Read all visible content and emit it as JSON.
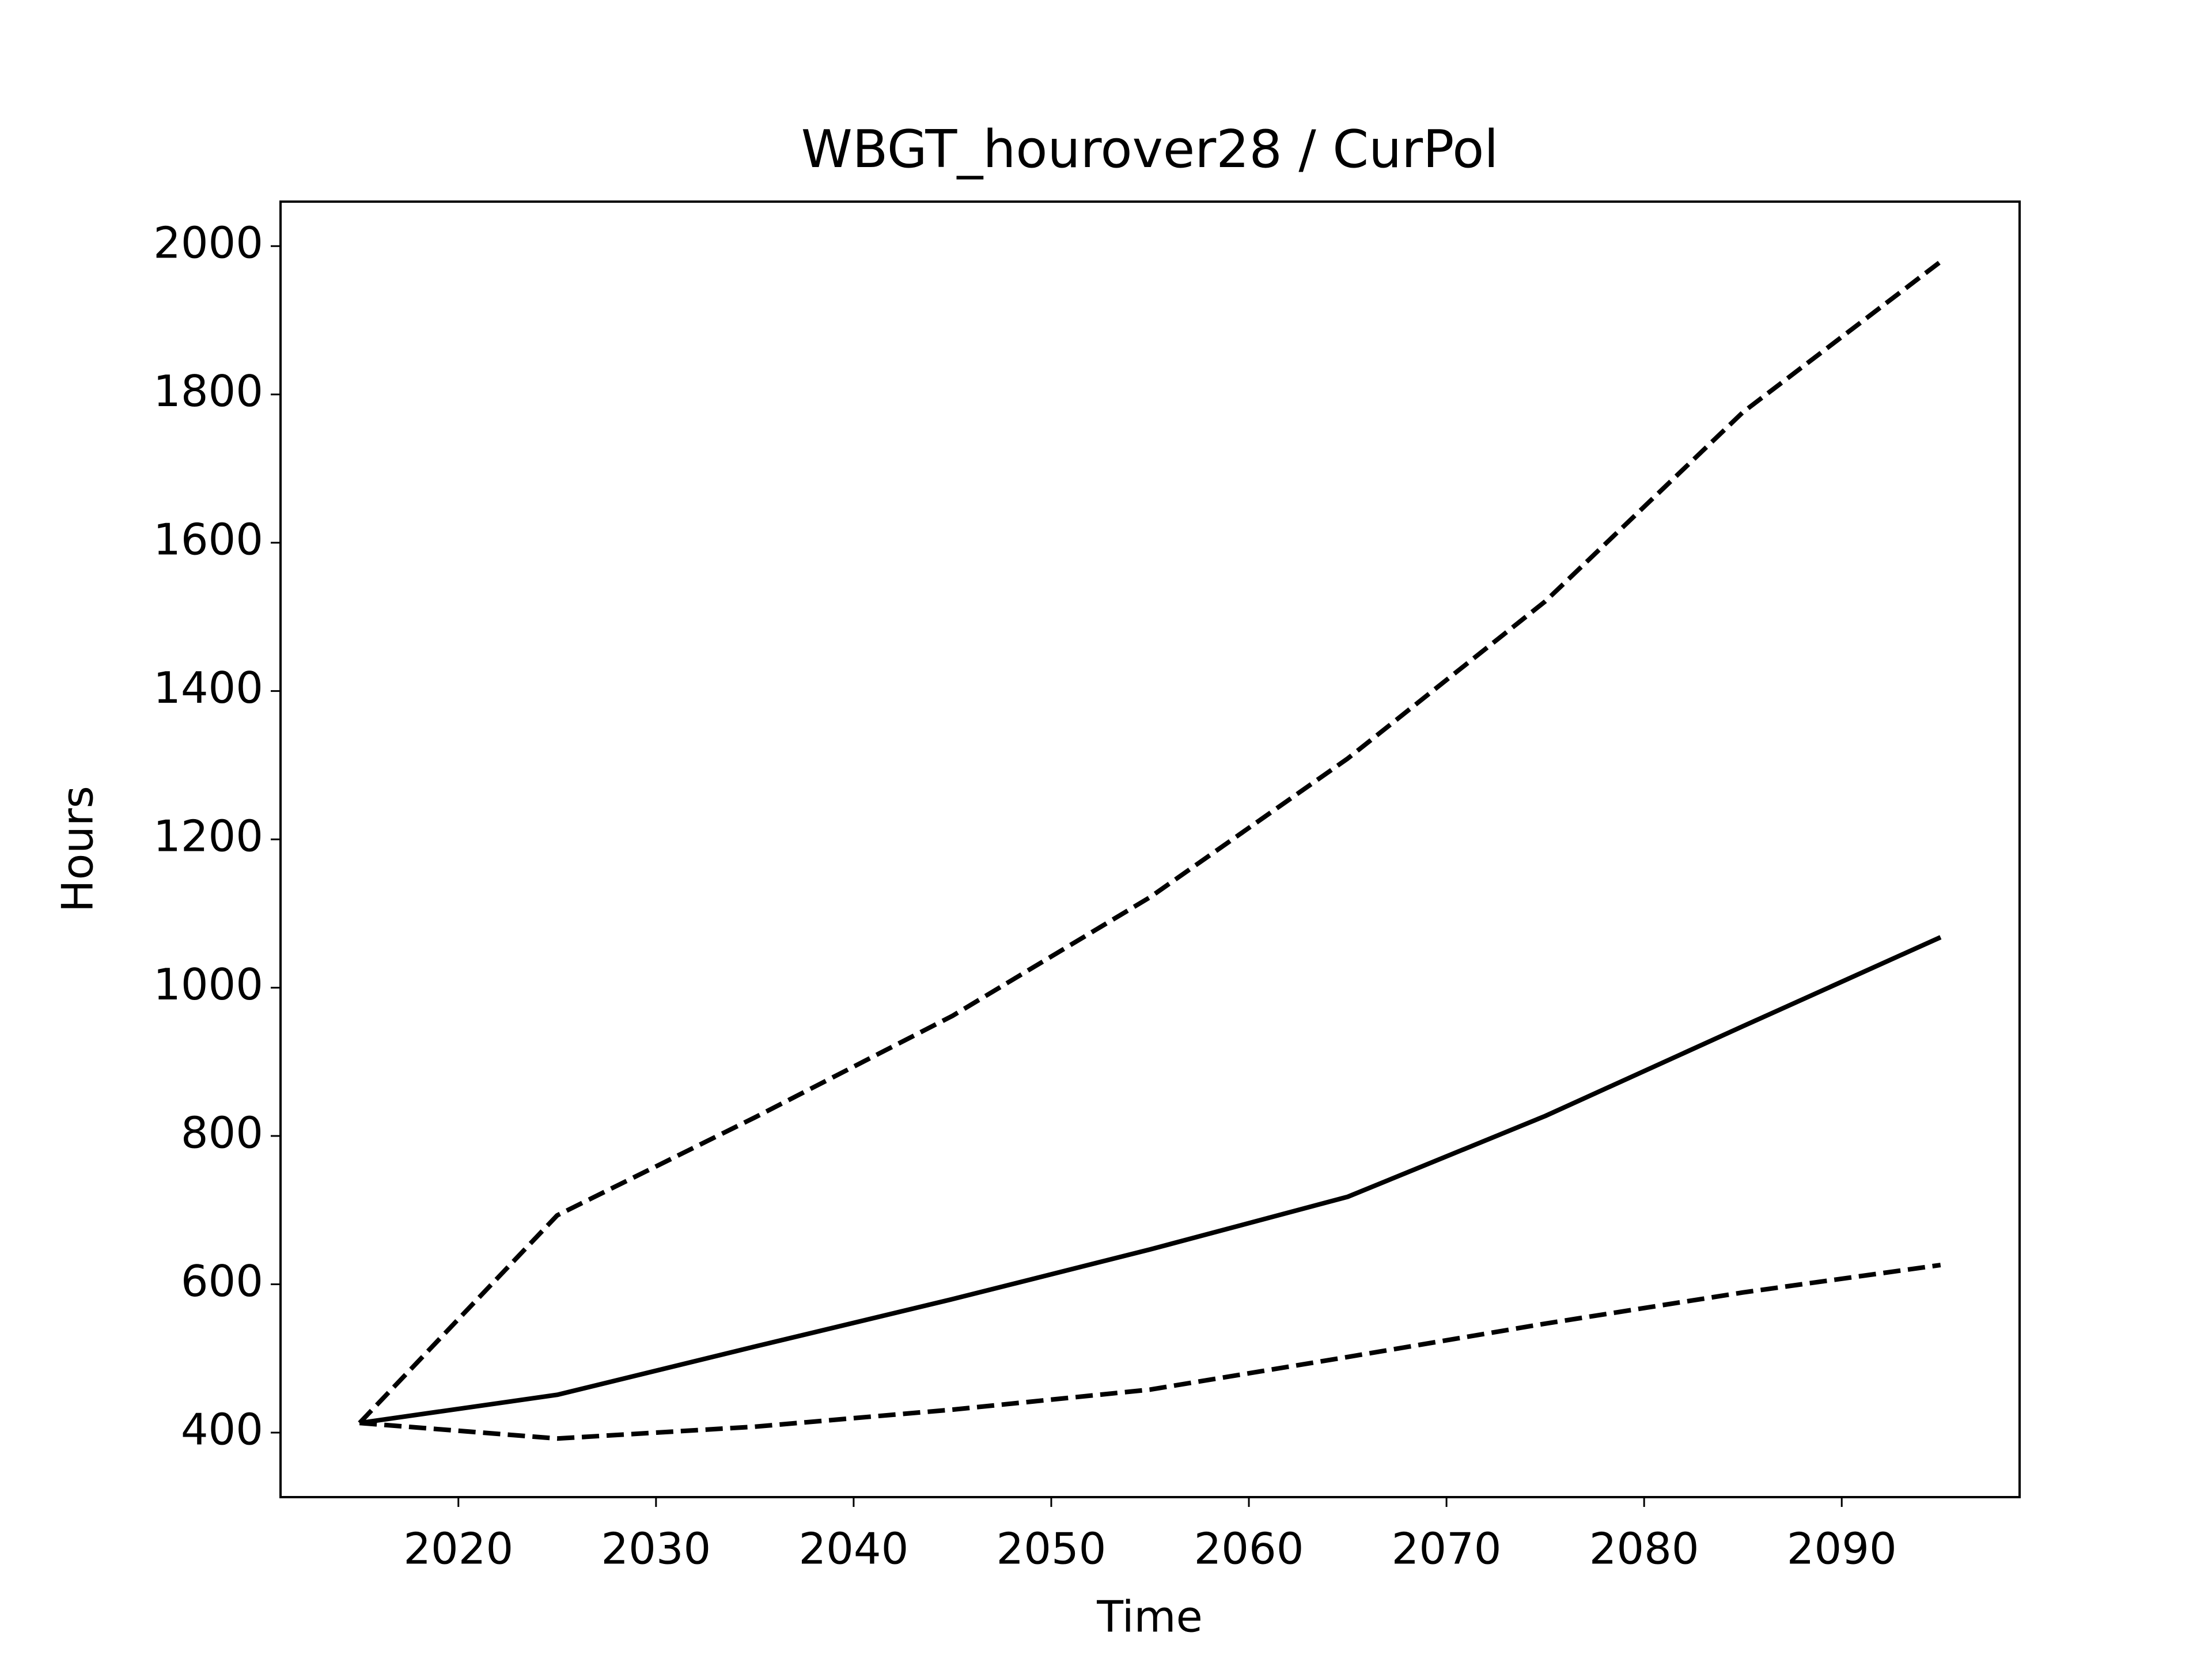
{
  "chart_data": {
    "type": "line",
    "title": "WBGT_hourover28 / CurPol",
    "x_label": "Time",
    "y_label": "Hours",
    "x": [
      2015,
      2025,
      2035,
      2045,
      2055,
      2065,
      2075,
      2085,
      2095
    ],
    "series": [
      {
        "color": "#000000",
        "style": "solid",
        "values": [
          413,
          451,
          516,
          580,
          647,
          718,
          827,
          948,
          1068
        ]
      },
      {
        "color": "#000000",
        "style": "dashed",
        "values": [
          413,
          693,
          825,
          962,
          1122,
          1309,
          1521,
          1776,
          1979
        ]
      },
      {
        "color": "#000000",
        "style": "dashed",
        "values": [
          413,
          392,
          408,
          431,
          458,
          502,
          547,
          589,
          626
        ]
      }
    ],
    "xlim": [
      2011,
      2099
    ],
    "xticks": [
      2020,
      2030,
      2040,
      2050,
      2060,
      2070,
      2080,
      2090
    ],
    "ylim": [
      313,
      2060
    ],
    "yticks": [
      400,
      600,
      800,
      1000,
      1200,
      1400,
      1600,
      1800,
      2000
    ],
    "grid": false
  }
}
